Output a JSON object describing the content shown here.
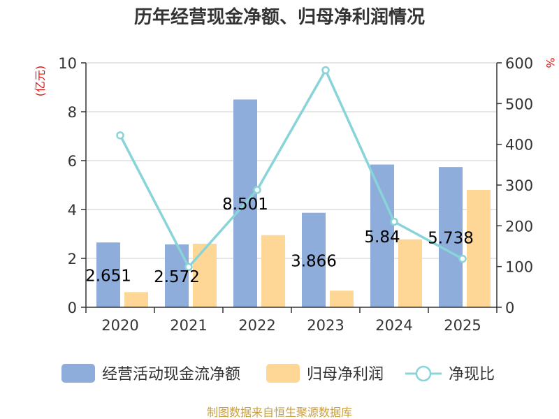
{
  "title": "历年经营现金净额、归母净利润情况",
  "source": "制图数据来自恒生聚源数据库",
  "colors": {
    "bar1": "#8eadda",
    "bar2": "#fed797",
    "line": "#88d4d8",
    "grid": "#cccccc",
    "axis": "#333333",
    "unit": "#e01010"
  },
  "chart_data": {
    "type": "bar",
    "categories": [
      "2020",
      "2021",
      "2022",
      "2023",
      "2024",
      "2025"
    ],
    "y_left": {
      "label": "(亿元)",
      "min": 0,
      "max": 10,
      "ticks": [
        0,
        2,
        4,
        6,
        8,
        10
      ]
    },
    "y_right": {
      "label": "%",
      "min": 0,
      "max": 600,
      "ticks": [
        0,
        100,
        200,
        300,
        400,
        500,
        600
      ]
    },
    "series": [
      {
        "name": "经营活动现金流净额",
        "type": "bar",
        "axis": "left",
        "values": [
          2.651,
          2.572,
          8.501,
          3.866,
          5.84,
          5.738
        ],
        "labels": [
          "2.651",
          "2.572",
          "8.501",
          "3.866",
          "5.84",
          "5.738"
        ]
      },
      {
        "name": "归母净利润",
        "type": "bar",
        "axis": "left",
        "values": [
          0.62,
          2.6,
          2.95,
          0.68,
          2.78,
          4.8
        ]
      },
      {
        "name": "净现比",
        "type": "line",
        "axis": "right",
        "values": [
          422,
          99,
          288,
          582,
          210,
          119
        ]
      }
    ],
    "grid": true,
    "legend": "bottom"
  }
}
